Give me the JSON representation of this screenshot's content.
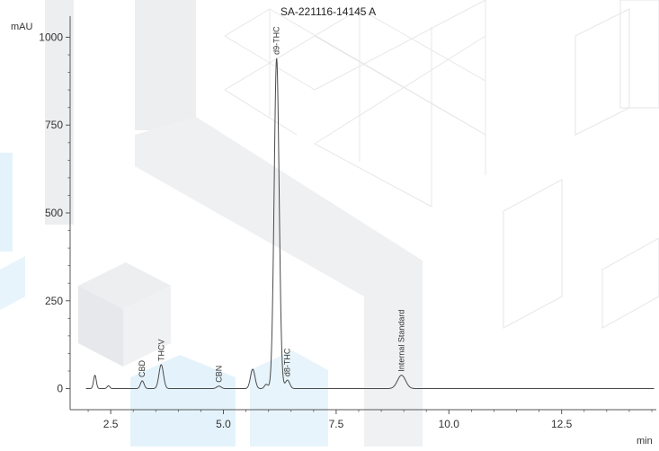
{
  "colors": {
    "trace": "#4a4a4a",
    "axis": "#555555",
    "watermark_face": "#e9eaec",
    "watermark_line": "#e6e7ea",
    "watermark_blue": "#e4f3fb"
  },
  "chart_data": {
    "type": "line",
    "title": "SA-221116-14145 A",
    "xlabel": "min",
    "ylabel": "mAU",
    "xlim": [
      1.6,
      14.6
    ],
    "ylim": [
      -60,
      1060
    ],
    "grid": false,
    "legend": "none",
    "x_ticks": [
      {
        "value": 2.5,
        "label": "2.5"
      },
      {
        "value": 5.0,
        "label": "5.0"
      },
      {
        "value": 7.5,
        "label": "7.5"
      },
      {
        "value": 10.0,
        "label": "10.0"
      },
      {
        "value": 12.5,
        "label": "12.5"
      }
    ],
    "y_ticks": [
      {
        "value": 0,
        "label": "0"
      },
      {
        "value": 250,
        "label": "250"
      },
      {
        "value": 500,
        "label": "500"
      },
      {
        "value": 750,
        "label": "750"
      },
      {
        "value": 1000,
        "label": "1000"
      }
    ],
    "peaks": [
      {
        "rt": 2.15,
        "height": 38,
        "width": 0.03,
        "label": ""
      },
      {
        "rt": 2.45,
        "height": 8,
        "width": 0.03,
        "label": ""
      },
      {
        "rt": 3.2,
        "height": 22,
        "width": 0.04,
        "label": "CBD"
      },
      {
        "rt": 3.62,
        "height": 68,
        "width": 0.05,
        "label": "THCV"
      },
      {
        "rt": 4.9,
        "height": 7,
        "width": 0.05,
        "label": "CBN"
      },
      {
        "rt": 5.65,
        "height": 55,
        "width": 0.05,
        "label": ""
      },
      {
        "rt": 5.95,
        "height": 12,
        "width": 0.04,
        "label": ""
      },
      {
        "rt": 6.18,
        "height": 940,
        "width": 0.055,
        "label": "d9-THC"
      },
      {
        "rt": 6.42,
        "height": 24,
        "width": 0.05,
        "label": "d8-THC"
      },
      {
        "rt": 8.95,
        "height": 38,
        "width": 0.09,
        "label": "Internal Standard"
      }
    ]
  }
}
